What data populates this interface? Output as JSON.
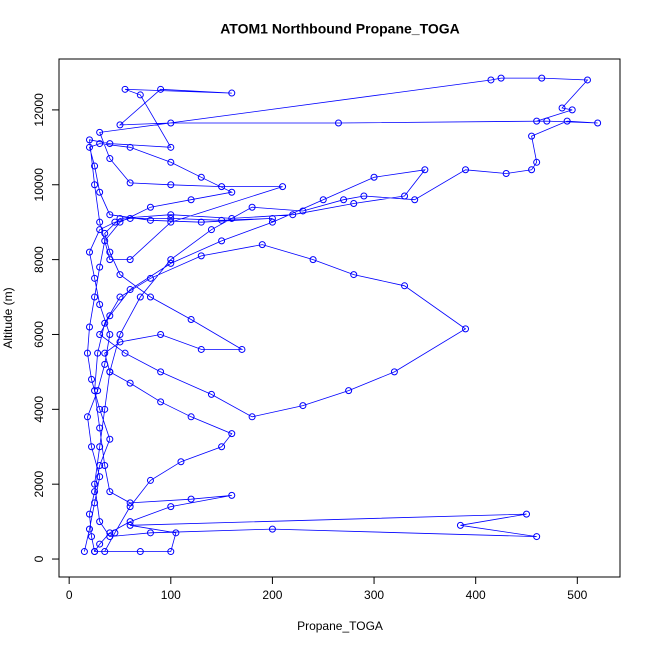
{
  "chart_data": {
    "type": "line",
    "title": "ATOM1 Northbound Propane_TOGA",
    "x_label": "Propane_TOGA",
    "y_label": "Altitude (m)",
    "color": "#0000ff",
    "markers": true,
    "xlim": [
      -10,
      542
    ],
    "ylim": [
      -480,
      13360
    ],
    "xticks": [
      0,
      100,
      200,
      300,
      400,
      500
    ],
    "yticks": [
      0,
      2000,
      4000,
      6000,
      8000,
      10000,
      12000
    ],
    "x": [
      15,
      20,
      25,
      30,
      22,
      18,
      28,
      35,
      40,
      30,
      25,
      20,
      30,
      45,
      60,
      100,
      150,
      200,
      130,
      80,
      40,
      30,
      25,
      20,
      30,
      60,
      100,
      130,
      160,
      120,
      80,
      50,
      35,
      30,
      25,
      20,
      18,
      22,
      30,
      40,
      30,
      25,
      20,
      22,
      25,
      35,
      45,
      60,
      80,
      110,
      150,
      160,
      120,
      90,
      60,
      40,
      35,
      50,
      90,
      130,
      170,
      120,
      80,
      50,
      40,
      35,
      50,
      100,
      160,
      220,
      280,
      330,
      350,
      300,
      250,
      200,
      150,
      100,
      60,
      40,
      30,
      55,
      90,
      140,
      180,
      230,
      275,
      320,
      390,
      330,
      280,
      240,
      190,
      130,
      80,
      50,
      35,
      28,
      25,
      30,
      35,
      40,
      60,
      120,
      160,
      100,
      60,
      40,
      30,
      25,
      70,
      100,
      105,
      60,
      450,
      385,
      460,
      200,
      80,
      40,
      30,
      25,
      30,
      35,
      40,
      50,
      70,
      100,
      140,
      180,
      230,
      270,
      290,
      340,
      390,
      430,
      455,
      460,
      455,
      490,
      520,
      470,
      265,
      100,
      50,
      90,
      160,
      55,
      70,
      100,
      40,
      20,
      25,
      30,
      40,
      60,
      100,
      210,
      150,
      100,
      60,
      40,
      30,
      415,
      425,
      465,
      510,
      485,
      495,
      460
    ],
    "values": [
      200,
      800,
      1500,
      2200,
      3000,
      3800,
      4500,
      5200,
      6000,
      6800,
      7500,
      8200,
      8800,
      9000,
      9100,
      9100,
      9050,
      9100,
      9000,
      9050,
      9200,
      9800,
      10500,
      11000,
      11100,
      11000,
      10600,
      10200,
      9800,
      9600,
      9400,
      9000,
      8500,
      7800,
      7000,
      6200,
      5500,
      4800,
      4000,
      3200,
      2500,
      1800,
      1200,
      600,
      200,
      200,
      700,
      1400,
      2100,
      2600,
      3000,
      3350,
      3800,
      4200,
      4700,
      5000,
      5500,
      5800,
      6000,
      5600,
      5600,
      6400,
      7000,
      7600,
      8200,
      8700,
      9100,
      9200,
      9100,
      9200,
      9500,
      9700,
      10400,
      10200,
      9600,
      9000,
      8500,
      7900,
      7200,
      6500,
      6000,
      5500,
      5000,
      4400,
      3800,
      4100,
      4500,
      5000,
      6150,
      7300,
      7600,
      8000,
      8400,
      8100,
      7500,
      7000,
      6300,
      5500,
      4500,
      3500,
      2500,
      1800,
      1500,
      1600,
      1700,
      1400,
      1000,
      700,
      400,
      200,
      200,
      200,
      700,
      900,
      1200,
      900,
      600,
      800,
      700,
      600,
      1000,
      2000,
      3000,
      4000,
      5000,
      6000,
      7000,
      8000,
      8800,
      9400,
      9300,
      9600,
      9700,
      9600,
      10400,
      10300,
      10400,
      10600,
      11300,
      11700,
      11650,
      11700,
      11650,
      11650,
      11600,
      12550,
      12450,
      12550,
      12400,
      11000,
      11100,
      11200,
      10000,
      9000,
      8000,
      8000,
      9000,
      9950,
      9950,
      10000,
      10050,
      10700,
      11400,
      12800,
      12850,
      12850,
      12800,
      12050,
      12000,
      11700
    ]
  }
}
